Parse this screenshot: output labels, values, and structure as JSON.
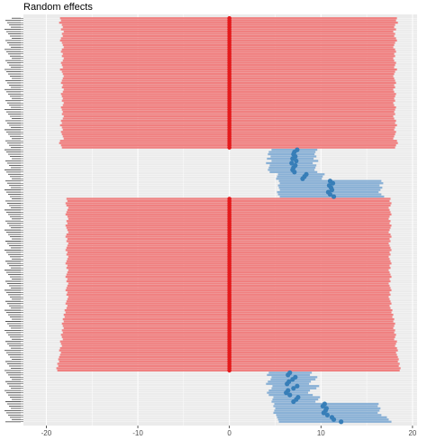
{
  "chart_data": {
    "type": "forest",
    "title": "Random effects",
    "xlabel": "",
    "ylabel": "",
    "xlim": [
      -22.5,
      20.5
    ],
    "x_ticks": [
      -20,
      -10,
      0,
      10,
      20
    ],
    "x_tick_labels": [
      "-20",
      "-10",
      "0",
      "10",
      "20"
    ],
    "grid": true,
    "legend": "none",
    "colors": {
      "null_effect": "#e41a1c",
      "null_interval": "#f08080",
      "positive_effect": "#377eb8",
      "positive_interval": "#8ab1d6",
      "panel": "#ebebeb",
      "grid": "#ffffff"
    },
    "groups": [
      {
        "kind": "null",
        "estimates": [
          0,
          0,
          0,
          0,
          0,
          0,
          0,
          0,
          0,
          0,
          0,
          0,
          0,
          0,
          0,
          0,
          0,
          0,
          0,
          0,
          0,
          0,
          0,
          0,
          0,
          0,
          0,
          0,
          0,
          0,
          0,
          0,
          0,
          0,
          0,
          0,
          0,
          0,
          0,
          0,
          0,
          0,
          0,
          0,
          0,
          0,
          0,
          0,
          0,
          0,
          0,
          0,
          0,
          0,
          0,
          0,
          0,
          0,
          0
        ],
        "lower": [
          -18.5,
          -18.4,
          -18.6,
          -18.3,
          -18.2,
          -18.4,
          -18.1,
          -18.3,
          -18.2,
          -18.4,
          -18.5,
          -18.3,
          -18.2,
          -18.1,
          -18.3,
          -18.4,
          -18.2,
          -18.3,
          -18.1,
          -18.2,
          -18.4,
          -18.3,
          -18.2,
          -18.5,
          -18.3,
          -18.2,
          -18.1,
          -18.2,
          -18.3,
          -18.4,
          -18.2,
          -18.3,
          -18.1,
          -18.2,
          -18.4,
          -18.3,
          -18.2,
          -18.3,
          -18.1,
          -18.2,
          -18.4,
          -18.3,
          -18.2,
          -18.3,
          -18.1,
          -18.2,
          -18.4,
          -18.3,
          -18.5,
          -18.3,
          -18.2,
          -18.4,
          -18.3,
          -18.2,
          -18.1,
          -18.5,
          -18.6,
          -18.4,
          -18.3
        ],
        "upper": [
          18.3,
          18.2,
          18.4,
          18.1,
          18.0,
          18.2,
          17.9,
          18.1,
          18.0,
          18.2,
          18.3,
          18.1,
          18.0,
          17.9,
          18.1,
          18.2,
          18.0,
          18.1,
          17.9,
          18.0,
          18.2,
          18.1,
          18.0,
          18.3,
          18.1,
          18.0,
          17.9,
          18.0,
          18.1,
          18.2,
          18.0,
          18.1,
          17.9,
          18.0,
          18.2,
          18.1,
          18.0,
          18.1,
          17.9,
          18.0,
          18.2,
          18.1,
          18.0,
          18.1,
          17.9,
          18.0,
          18.2,
          18.1,
          18.3,
          18.1,
          18.0,
          18.2,
          18.1,
          18.0,
          17.9,
          18.3,
          18.4,
          18.2,
          18.1
        ]
      },
      {
        "kind": "positive",
        "estimates": [
          7.4,
          7.1,
          7.0,
          7.2,
          6.9,
          7.3,
          6.8,
          7.2,
          7.0,
          6.9,
          7.1,
          8.4,
          8.2,
          8.0,
          11.0,
          11.3,
          10.9,
          11.1,
          11.2,
          10.8,
          11.0,
          11.4
        ],
        "lower": [
          4.6,
          4.3,
          4.2,
          4.5,
          4.1,
          4.6,
          4.0,
          4.4,
          4.3,
          4.2,
          4.4,
          5.3,
          5.2,
          5.1,
          5.4,
          5.5,
          5.3,
          5.4,
          5.5,
          5.2,
          5.3,
          5.5
        ],
        "upper": [
          9.6,
          9.4,
          9.3,
          9.5,
          9.2,
          9.7,
          9.1,
          9.5,
          9.4,
          9.3,
          9.6,
          10.4,
          10.2,
          10.1,
          16.6,
          16.8,
          16.4,
          16.7,
          16.5,
          16.3,
          16.6,
          16.9
        ]
      },
      {
        "kind": "null",
        "estimates": [
          0,
          0,
          0,
          0,
          0,
          0,
          0,
          0,
          0,
          0,
          0,
          0,
          0,
          0,
          0,
          0,
          0,
          0,
          0,
          0,
          0,
          0,
          0,
          0,
          0,
          0,
          0,
          0,
          0,
          0,
          0,
          0,
          0,
          0,
          0,
          0,
          0,
          0,
          0,
          0,
          0,
          0,
          0,
          0,
          0,
          0,
          0,
          0,
          0,
          0,
          0,
          0,
          0,
          0,
          0,
          0,
          0,
          0,
          0,
          0,
          0,
          0,
          0,
          0,
          0,
          0,
          0,
          0,
          0,
          0,
          0,
          0,
          0,
          0,
          0,
          0,
          0,
          0
        ],
        "lower": [
          -17.8,
          -17.7,
          -17.9,
          -17.8,
          -17.6,
          -17.7,
          -17.8,
          -17.9,
          -17.7,
          -17.6,
          -17.8,
          -17.7,
          -17.9,
          -17.8,
          -17.7,
          -17.6,
          -17.8,
          -17.9,
          -17.7,
          -17.8,
          -17.6,
          -17.7,
          -17.8,
          -17.9,
          -17.7,
          -17.8,
          -17.6,
          -17.7,
          -17.8,
          -17.9,
          -17.7,
          -17.8,
          -17.6,
          -17.7,
          -17.8,
          -17.9,
          -17.7,
          -17.8,
          -17.6,
          -17.7,
          -17.8,
          -17.9,
          -17.7,
          -17.8,
          -17.6,
          -17.7,
          -17.8,
          -17.9,
          -17.7,
          -17.8,
          -18.0,
          -17.9,
          -18.1,
          -18.0,
          -18.2,
          -18.1,
          -18.3,
          -18.2,
          -18.1,
          -18.3,
          -18.2,
          -18.4,
          -18.3,
          -18.2,
          -18.5,
          -18.4,
          -18.3,
          -18.5,
          -18.6,
          -18.4,
          -18.5,
          -18.6,
          -18.7,
          -18.6,
          -18.8,
          -18.7,
          -18.9,
          -18.8
        ],
        "upper": [
          17.6,
          17.5,
          17.7,
          17.6,
          17.4,
          17.5,
          17.6,
          17.7,
          17.5,
          17.4,
          17.6,
          17.5,
          17.7,
          17.6,
          17.5,
          17.4,
          17.6,
          17.7,
          17.5,
          17.6,
          17.4,
          17.5,
          17.6,
          17.7,
          17.5,
          17.6,
          17.4,
          17.5,
          17.6,
          17.7,
          17.5,
          17.6,
          17.4,
          17.5,
          17.6,
          17.7,
          17.5,
          17.6,
          17.4,
          17.5,
          17.6,
          17.7,
          17.5,
          17.6,
          17.4,
          17.5,
          17.6,
          17.7,
          17.5,
          17.6,
          17.8,
          17.7,
          17.9,
          17.8,
          18.0,
          17.9,
          18.1,
          18.0,
          17.9,
          18.1,
          18.0,
          18.2,
          18.1,
          18.0,
          18.3,
          18.2,
          18.1,
          18.3,
          18.4,
          18.2,
          18.3,
          18.4,
          18.5,
          18.4,
          18.6,
          18.5,
          18.7,
          18.6
        ]
      },
      {
        "kind": "positive",
        "estimates": [
          6.6,
          6.4,
          7.2,
          6.9,
          6.5,
          6.3,
          7.4,
          7.0,
          6.4,
          6.2,
          6.6,
          7.5,
          7.3,
          7.0,
          10.4,
          10.2,
          10.6,
          10.5,
          10.3,
          10.7,
          11.2,
          11.4,
          12.2
        ],
        "lower": [
          4.3,
          4.1,
          4.6,
          4.5,
          4.2,
          4.0,
          4.7,
          4.6,
          4.3,
          4.1,
          4.3,
          4.8,
          4.7,
          4.6,
          4.9,
          4.8,
          5.0,
          4.9,
          4.8,
          5.1,
          5.2,
          5.3,
          5.4
        ],
        "upper": [
          9.0,
          8.8,
          9.6,
          9.4,
          8.9,
          8.7,
          9.8,
          9.5,
          8.8,
          8.6,
          9.1,
          9.9,
          9.7,
          9.4,
          16.3,
          16.2,
          16.5,
          16.4,
          16.2,
          16.6,
          17.2,
          17.4,
          17.7
        ]
      }
    ]
  }
}
